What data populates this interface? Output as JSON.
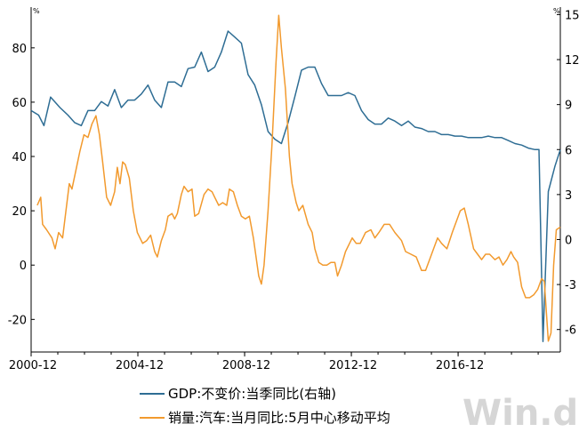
{
  "chart_data": {
    "type": "line",
    "units": {
      "left": "%",
      "right": "%"
    },
    "x_range": [
      2000.92,
      2020.75
    ],
    "xticks": [
      {
        "label": "2000-12",
        "value": 2000.92
      },
      {
        "label": "2004-12",
        "value": 2004.92
      },
      {
        "label": "2008-12",
        "value": 2008.92
      },
      {
        "label": "2012-12",
        "value": 2012.92
      },
      {
        "label": "2016-12",
        "value": 2016.92
      }
    ],
    "y_left": {
      "min": -32,
      "max": 95,
      "ticks": [
        -20,
        0,
        20,
        40,
        60,
        80
      ]
    },
    "y_right": {
      "min": -7.5,
      "max": 15.5,
      "ticks": [
        -6,
        -3,
        0,
        3,
        6,
        9,
        12,
        15
      ]
    },
    "legend_position": "bottom-left",
    "series": [
      {
        "name": "GDP:不变价:当季同比(右轴)",
        "axis": "right",
        "color": "#2e6d94",
        "points": [
          [
            2000.92,
            8.6
          ],
          [
            2001.2,
            8.3
          ],
          [
            2001.4,
            7.6
          ],
          [
            2001.65,
            9.5
          ],
          [
            2002.0,
            8.8
          ],
          [
            2002.3,
            8.3
          ],
          [
            2002.55,
            7.8
          ],
          [
            2002.8,
            7.6
          ],
          [
            2003.05,
            8.6
          ],
          [
            2003.3,
            8.6
          ],
          [
            2003.55,
            9.2
          ],
          [
            2003.8,
            8.9
          ],
          [
            2004.05,
            10.0
          ],
          [
            2004.3,
            8.8
          ],
          [
            2004.55,
            9.3
          ],
          [
            2004.8,
            9.3
          ],
          [
            2005.05,
            9.7
          ],
          [
            2005.3,
            10.3
          ],
          [
            2005.55,
            9.3
          ],
          [
            2005.8,
            8.8
          ],
          [
            2006.05,
            10.5
          ],
          [
            2006.3,
            10.5
          ],
          [
            2006.55,
            10.2
          ],
          [
            2006.8,
            11.4
          ],
          [
            2007.05,
            11.5
          ],
          [
            2007.3,
            12.5
          ],
          [
            2007.55,
            11.2
          ],
          [
            2007.8,
            11.5
          ],
          [
            2008.05,
            12.5
          ],
          [
            2008.3,
            13.9
          ],
          [
            2008.55,
            13.5
          ],
          [
            2008.8,
            13.1
          ],
          [
            2009.05,
            11.0
          ],
          [
            2009.3,
            10.3
          ],
          [
            2009.55,
            9.0
          ],
          [
            2009.8,
            7.2
          ],
          [
            2010.05,
            6.7
          ],
          [
            2010.3,
            6.4
          ],
          [
            2010.55,
            7.8
          ],
          [
            2010.8,
            9.5
          ],
          [
            2011.05,
            11.3
          ],
          [
            2011.3,
            11.5
          ],
          [
            2011.55,
            11.5
          ],
          [
            2011.8,
            10.4
          ],
          [
            2012.05,
            9.6
          ],
          [
            2012.3,
            9.6
          ],
          [
            2012.55,
            9.6
          ],
          [
            2012.8,
            9.8
          ],
          [
            2013.05,
            9.6
          ],
          [
            2013.3,
            8.6
          ],
          [
            2013.55,
            8.0
          ],
          [
            2013.8,
            7.7
          ],
          [
            2014.05,
            7.7
          ],
          [
            2014.3,
            8.1
          ],
          [
            2014.55,
            7.9
          ],
          [
            2014.8,
            7.6
          ],
          [
            2015.05,
            7.9
          ],
          [
            2015.3,
            7.5
          ],
          [
            2015.55,
            7.4
          ],
          [
            2015.8,
            7.2
          ],
          [
            2016.05,
            7.2
          ],
          [
            2016.3,
            7.0
          ],
          [
            2016.55,
            7.0
          ],
          [
            2016.8,
            6.9
          ],
          [
            2017.05,
            6.9
          ],
          [
            2017.3,
            6.8
          ],
          [
            2017.55,
            6.8
          ],
          [
            2017.8,
            6.8
          ],
          [
            2018.05,
            6.9
          ],
          [
            2018.3,
            6.8
          ],
          [
            2018.55,
            6.8
          ],
          [
            2018.8,
            6.6
          ],
          [
            2019.05,
            6.4
          ],
          [
            2019.3,
            6.3
          ],
          [
            2019.55,
            6.1
          ],
          [
            2019.8,
            6.0
          ],
          [
            2019.95,
            6.0
          ],
          [
            2020.1,
            -6.8
          ],
          [
            2020.3,
            3.2
          ],
          [
            2020.55,
            4.9
          ],
          [
            2020.75,
            6.0
          ]
        ]
      },
      {
        "name": "销量:汽车:当月同比:5月中心移动平均",
        "axis": "left",
        "color": "#f29a2e",
        "points": [
          [
            2001.15,
            22
          ],
          [
            2001.28,
            25
          ],
          [
            2001.35,
            15
          ],
          [
            2001.5,
            13
          ],
          [
            2001.7,
            10
          ],
          [
            2001.82,
            6
          ],
          [
            2001.95,
            12
          ],
          [
            2002.1,
            10
          ],
          [
            2002.2,
            18
          ],
          [
            2002.35,
            30
          ],
          [
            2002.45,
            28
          ],
          [
            2002.6,
            35
          ],
          [
            2002.75,
            42
          ],
          [
            2002.9,
            48
          ],
          [
            2003.05,
            47
          ],
          [
            2003.2,
            52
          ],
          [
            2003.35,
            55
          ],
          [
            2003.48,
            48
          ],
          [
            2003.6,
            38
          ],
          [
            2003.75,
            25
          ],
          [
            2003.9,
            22
          ],
          [
            2004.05,
            27
          ],
          [
            2004.15,
            36
          ],
          [
            2004.25,
            30
          ],
          [
            2004.35,
            38
          ],
          [
            2004.45,
            37
          ],
          [
            2004.6,
            32
          ],
          [
            2004.75,
            20
          ],
          [
            2004.9,
            12
          ],
          [
            2005.0,
            10
          ],
          [
            2005.1,
            8
          ],
          [
            2005.25,
            9
          ],
          [
            2005.4,
            11
          ],
          [
            2005.55,
            5
          ],
          [
            2005.65,
            3
          ],
          [
            2005.8,
            9
          ],
          [
            2005.95,
            13
          ],
          [
            2006.05,
            18
          ],
          [
            2006.2,
            19
          ],
          [
            2006.3,
            17
          ],
          [
            2006.4,
            19
          ],
          [
            2006.55,
            26
          ],
          [
            2006.65,
            29
          ],
          [
            2006.8,
            27
          ],
          [
            2006.95,
            28
          ],
          [
            2007.05,
            18
          ],
          [
            2007.2,
            19
          ],
          [
            2007.4,
            26
          ],
          [
            2007.55,
            28
          ],
          [
            2007.7,
            27
          ],
          [
            2007.8,
            25
          ],
          [
            2007.95,
            22
          ],
          [
            2008.1,
            23
          ],
          [
            2008.25,
            22
          ],
          [
            2008.35,
            28
          ],
          [
            2008.5,
            27
          ],
          [
            2008.65,
            22
          ],
          [
            2008.8,
            18
          ],
          [
            2008.95,
            17
          ],
          [
            2009.1,
            18
          ],
          [
            2009.25,
            10
          ],
          [
            2009.35,
            3
          ],
          [
            2009.45,
            -4
          ],
          [
            2009.55,
            -7
          ],
          [
            2009.65,
            0
          ],
          [
            2009.8,
            20
          ],
          [
            2009.95,
            45
          ],
          [
            2010.1,
            75
          ],
          [
            2010.2,
            92
          ],
          [
            2010.3,
            80
          ],
          [
            2010.45,
            65
          ],
          [
            2010.6,
            40
          ],
          [
            2010.7,
            30
          ],
          [
            2010.85,
            23
          ],
          [
            2010.95,
            20
          ],
          [
            2011.1,
            22
          ],
          [
            2011.3,
            15
          ],
          [
            2011.45,
            12
          ],
          [
            2011.55,
            6
          ],
          [
            2011.7,
            1
          ],
          [
            2011.85,
            0
          ],
          [
            2012.0,
            0
          ],
          [
            2012.15,
            1
          ],
          [
            2012.3,
            1
          ],
          [
            2012.4,
            -4
          ],
          [
            2012.55,
            0
          ],
          [
            2012.7,
            5
          ],
          [
            2012.85,
            8
          ],
          [
            2012.95,
            10
          ],
          [
            2013.1,
            8
          ],
          [
            2013.25,
            8
          ],
          [
            2013.45,
            12
          ],
          [
            2013.65,
            13
          ],
          [
            2013.8,
            10
          ],
          [
            2013.95,
            12
          ],
          [
            2014.15,
            15
          ],
          [
            2014.35,
            15
          ],
          [
            2014.55,
            12
          ],
          [
            2014.8,
            9
          ],
          [
            2014.95,
            5
          ],
          [
            2015.15,
            4
          ],
          [
            2015.35,
            3
          ],
          [
            2015.55,
            -2
          ],
          [
            2015.7,
            -2
          ],
          [
            2015.85,
            2
          ],
          [
            2016.0,
            6
          ],
          [
            2016.15,
            10
          ],
          [
            2016.3,
            8
          ],
          [
            2016.5,
            6
          ],
          [
            2016.7,
            12
          ],
          [
            2016.85,
            16
          ],
          [
            2017.0,
            20
          ],
          [
            2017.15,
            21
          ],
          [
            2017.3,
            15
          ],
          [
            2017.5,
            6
          ],
          [
            2017.65,
            4
          ],
          [
            2017.8,
            2
          ],
          [
            2017.95,
            4
          ],
          [
            2018.1,
            4
          ],
          [
            2018.3,
            2
          ],
          [
            2018.45,
            3
          ],
          [
            2018.6,
            0
          ],
          [
            2018.75,
            2
          ],
          [
            2018.9,
            5
          ],
          [
            2019.0,
            3
          ],
          [
            2019.15,
            1
          ],
          [
            2019.3,
            -8
          ],
          [
            2019.45,
            -12
          ],
          [
            2019.6,
            -12
          ],
          [
            2019.75,
            -11
          ],
          [
            2019.9,
            -9
          ],
          [
            2020.05,
            -5
          ],
          [
            2020.15,
            -6
          ],
          [
            2020.3,
            -28
          ],
          [
            2020.4,
            -25
          ],
          [
            2020.5,
            0
          ],
          [
            2020.6,
            13
          ],
          [
            2020.75,
            14
          ]
        ]
      }
    ]
  },
  "legend": [
    {
      "label": "GDP:不变价:当季同比(右轴)",
      "color": "#2e6d94"
    },
    {
      "label": "销量:汽车:当月同比:5月中心移动平均",
      "color": "#f29a2e"
    }
  ],
  "watermark": "Win.d"
}
